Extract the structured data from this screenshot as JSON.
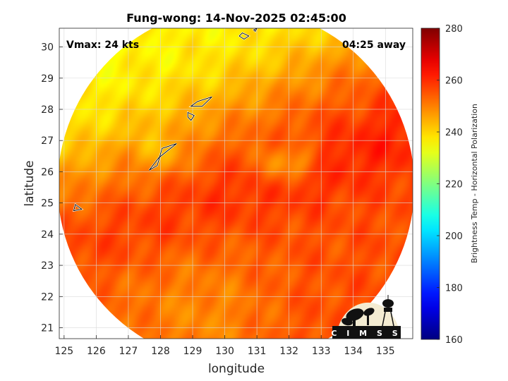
{
  "chart_data": {
    "type": "heatmap",
    "title": "Fung-wong: 14-Nov-2025 02:45:00",
    "xlabel": "longitude",
    "ylabel": "latitude",
    "xlim": [
      124.85,
      135.85
    ],
    "ylim": [
      20.65,
      30.6
    ],
    "xticks": [
      125,
      126,
      127,
      128,
      129,
      130,
      131,
      132,
      133,
      134,
      135
    ],
    "yticks": [
      21,
      22,
      23,
      24,
      25,
      26,
      27,
      28,
      29,
      30
    ],
    "grid": true,
    "annotations": {
      "left": "Vmax: 24 kts",
      "right": "04:25 away"
    },
    "field": {
      "description_units": "K",
      "swath_center": [
        130.35,
        25.55
      ],
      "swath_radius_deg": 5.55
    },
    "colorbar": {
      "label": "Brightness Temp - Horizontal Polarization",
      "range": [
        160,
        280
      ],
      "ticks": [
        160,
        180,
        200,
        220,
        240,
        260,
        280
      ],
      "colormap": "jet"
    },
    "contour_level": 263
  },
  "logo": {
    "text": "C I M S S"
  }
}
